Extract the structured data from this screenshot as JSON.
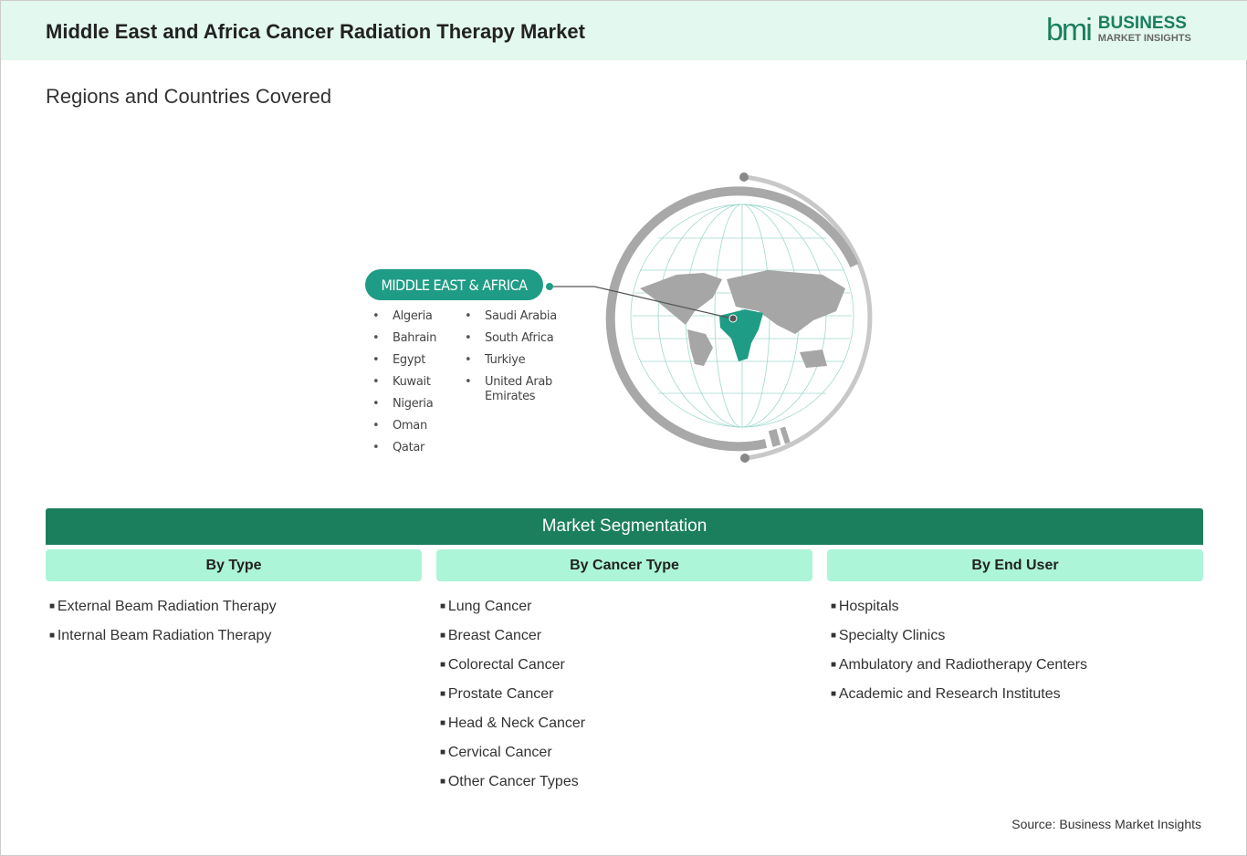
{
  "header": {
    "title": "Middle East and Africa Cancer Radiation Therapy Market",
    "logo_mark": "bmi",
    "logo_line1": "BUSINESS",
    "logo_line2": "MARKET INSIGHTS"
  },
  "regions": {
    "heading": "Regions and Countries Covered",
    "region_label": "MIDDLE EAST & AFRICA",
    "countries_col1": [
      "Algeria",
      "Bahrain",
      "Egypt",
      "Kuwait",
      "Nigeria",
      "Oman",
      "Qatar"
    ],
    "countries_col2": [
      "Saudi Arabia",
      "South Africa",
      "Turkiye",
      "United Arab Emirates"
    ]
  },
  "segmentation": {
    "title": "Market Segmentation",
    "columns": [
      {
        "heading": "By Type",
        "items": [
          "External Beam Radiation Therapy",
          "Internal Beam Radiation Therapy"
        ]
      },
      {
        "heading": "By Cancer Type",
        "items": [
          "Lung Cancer",
          "Breast Cancer",
          "Colorectal Cancer",
          "Prostate Cancer",
          "Head & Neck Cancer",
          "Cervical Cancer",
          "Other Cancer Types"
        ]
      },
      {
        "heading": "By End User",
        "items": [
          "Hospitals",
          "Specialty Clinics",
          "Ambulatory and Radiotherapy Centers",
          "Academic and Research Institutes"
        ]
      }
    ]
  },
  "source": "Source: Business Market Insights",
  "colors": {
    "brand": "#1b7f5e",
    "highlight": "#1f9c85",
    "header_bg": "#e3f8ef",
    "segment_head_bg": "#adf5d8"
  }
}
